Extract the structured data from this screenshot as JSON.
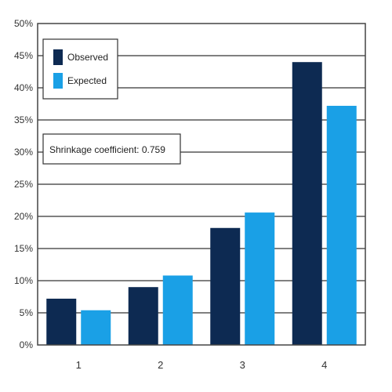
{
  "chart_data": {
    "type": "bar",
    "categories": [
      "1",
      "2",
      "3",
      "4"
    ],
    "series": [
      {
        "name": "Observed",
        "values": [
          7.2,
          9.0,
          18.2,
          44.0
        ]
      },
      {
        "name": "Expected",
        "values": [
          5.4,
          10.8,
          20.6,
          37.2
        ]
      }
    ],
    "yticks": [
      "0%",
      "5%",
      "10%",
      "15%",
      "20%",
      "25%",
      "30%",
      "35%",
      "40%",
      "45%",
      "50%"
    ],
    "ylim": [
      0,
      50
    ],
    "grid": true,
    "legend_position": "top-left",
    "annotation": "Shrinkage coefficient: 0.759",
    "colors": {
      "Observed": "#0d2a52",
      "Expected": "#1aa0e6",
      "grid": "#6e6e6e",
      "axis": "#555555"
    }
  }
}
